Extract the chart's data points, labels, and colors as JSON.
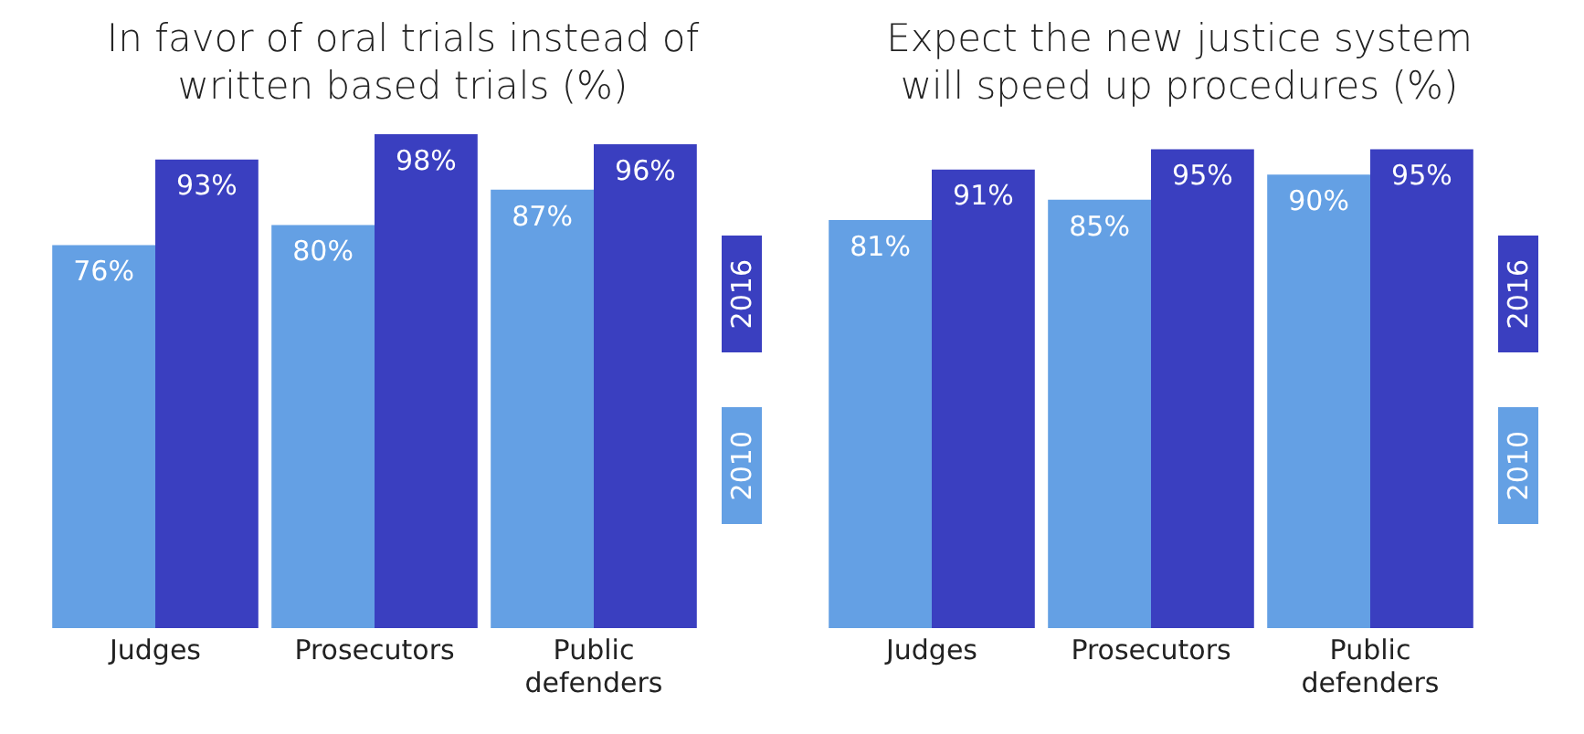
{
  "chart_data": [
    {
      "type": "bar",
      "title": "In favor of oral trials instead of written based trials (%)",
      "categories": [
        "Judges",
        "Prosecutors",
        "Public defenders"
      ],
      "series": [
        {
          "name": "2010",
          "color": "#64a0e4",
          "values": [
            76,
            80,
            87
          ],
          "value_labels": [
            "76%",
            "80%",
            "87%"
          ]
        },
        {
          "name": "2016",
          "color": "#3a3fc0",
          "values": [
            93,
            98,
            96
          ],
          "value_labels": [
            "93%",
            "98%",
            "96%"
          ]
        }
      ],
      "tick_labels": "x",
      "grid": false,
      "legend": "right"
    },
    {
      "type": "bar",
      "title": "Expect the new justice system will speed up procedures (%)",
      "categories": [
        "Judges",
        "Prosecutors",
        "Public defenders"
      ],
      "series": [
        {
          "name": "2010",
          "color": "#64a0e4",
          "values": [
            81,
            85,
            90
          ],
          "value_labels": [
            "81%",
            "85%",
            "90%"
          ]
        },
        {
          "name": "2016",
          "color": "#3a3fc0",
          "values": [
            91,
            95,
            95
          ],
          "value_labels": [
            "91%",
            "95%",
            "95%"
          ]
        }
      ],
      "tick_labels": "x",
      "grid": false,
      "legend": "right"
    }
  ]
}
